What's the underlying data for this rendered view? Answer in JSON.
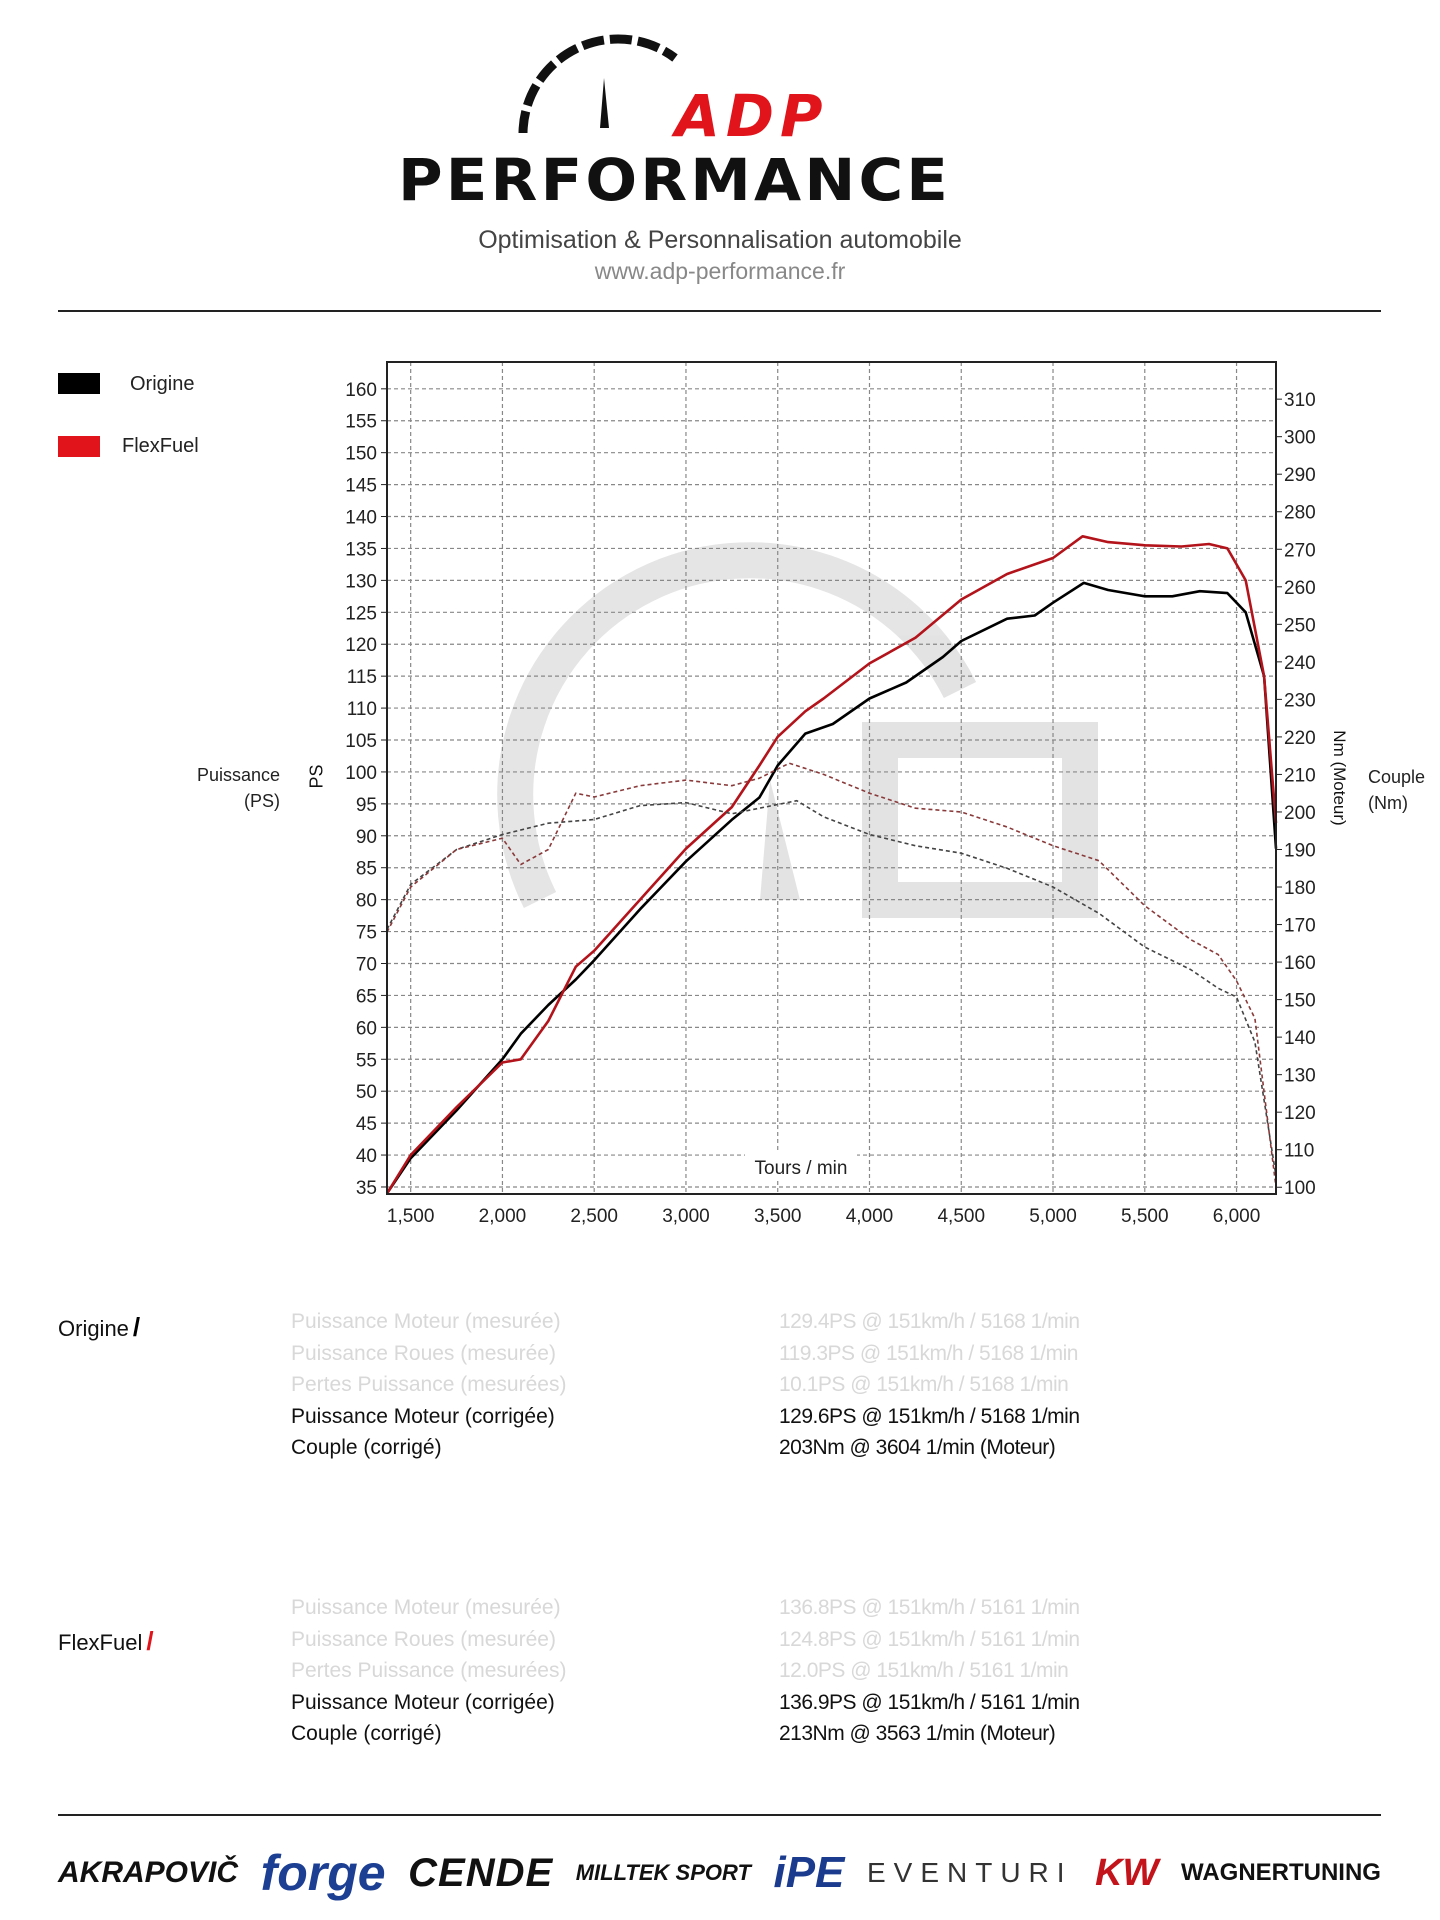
{
  "header": {
    "brand_top": "ADP",
    "brand_bottom": "PERFORMANCE",
    "subtitle": "Optimisation & Personnalisation automobile",
    "url": "www.adp-performance.fr",
    "brand_color": "#e1141b"
  },
  "legend": [
    {
      "label": "Origine",
      "color": "#000000"
    },
    {
      "label": "FlexFuel",
      "color": "#e1141b"
    }
  ],
  "axis_titles": {
    "left_outer": [
      "Puissance",
      "(PS)"
    ],
    "left_inner": "PS",
    "right_outer": [
      "Couple",
      "(Nm)"
    ],
    "right_inner": "Nm (Moteur)",
    "x": "Tours / min"
  },
  "chart_data": {
    "type": "line",
    "title": "",
    "xlabel": "Tours / min",
    "ylabel": "PS",
    "y2label": "Nm (Moteur)",
    "xlim": [
      1371,
      6215
    ],
    "ylim": [
      33.9,
      164.2
    ],
    "y2lim": [
      98.2,
      319.9
    ],
    "grid": true,
    "x_ticks": [
      "1,500",
      "2,000",
      "2,500",
      "3,000",
      "3,500",
      "4,000",
      "4,500",
      "5,000",
      "5,500",
      "6,000"
    ],
    "x_tick_values": [
      1500,
      2000,
      2500,
      3000,
      3500,
      4000,
      4500,
      5000,
      5500,
      6000
    ],
    "y_ticks": [
      35,
      40,
      45,
      50,
      55,
      60,
      65,
      70,
      75,
      80,
      85,
      90,
      95,
      100,
      105,
      110,
      115,
      120,
      125,
      130,
      135,
      140,
      145,
      150,
      155,
      160
    ],
    "y2_ticks": [
      100,
      110,
      120,
      130,
      140,
      150,
      160,
      170,
      180,
      190,
      200,
      210,
      220,
      230,
      240,
      250,
      260,
      270,
      280,
      290,
      300,
      310
    ],
    "series": [
      {
        "name": "Origine",
        "kind": "power",
        "axis": "left",
        "color": "#000000",
        "x": [
          1371,
          1500,
          1750,
          2000,
          2100,
          2250,
          2400,
          2500,
          2750,
          3000,
          3250,
          3400,
          3500,
          3650,
          3800,
          4000,
          4200,
          4400,
          4500,
          4750,
          4900,
          5000,
          5168,
          5300,
          5500,
          5650,
          5800,
          5950,
          6050,
          6150,
          6215
        ],
        "y": [
          34,
          39.5,
          47,
          55,
          59,
          63.5,
          67.5,
          70.5,
          78.5,
          86,
          92.5,
          96,
          101,
          106,
          107.5,
          111.5,
          114,
          118,
          120.5,
          124,
          124.5,
          126.5,
          129.6,
          128.5,
          127.5,
          127.5,
          128.3,
          128,
          125,
          115,
          88
        ]
      },
      {
        "name": "FlexFuel",
        "kind": "power",
        "axis": "left",
        "color": "#b3131a",
        "x": [
          1371,
          1500,
          1750,
          2000,
          2100,
          2250,
          2400,
          2500,
          2750,
          3000,
          3250,
          3400,
          3500,
          3650,
          3750,
          4000,
          4250,
          4500,
          4750,
          5000,
          5161,
          5300,
          5500,
          5700,
          5850,
          5950,
          6050,
          6150,
          6215
        ],
        "y": [
          34,
          40,
          47.5,
          54.5,
          55,
          61,
          69.5,
          72,
          80,
          88,
          94.5,
          101,
          105.5,
          109.5,
          111.5,
          117,
          121,
          127,
          131,
          133.5,
          136.9,
          136,
          135.5,
          135.3,
          135.7,
          135,
          130,
          115,
          92
        ]
      },
      {
        "name": "Origine",
        "kind": "torque",
        "axis": "right",
        "color": "#444444",
        "x": [
          1371,
          1500,
          1750,
          2000,
          2250,
          2500,
          2750,
          3000,
          3250,
          3400,
          3604,
          3750,
          4000,
          4250,
          4500,
          4750,
          5000,
          5250,
          5500,
          5750,
          5900,
          6000,
          6100,
          6215
        ],
        "y": [
          168.7,
          180.7,
          190,
          194,
          197,
          198,
          201.7,
          202.5,
          199.5,
          201,
          203,
          198.7,
          194,
          191,
          189,
          185,
          180,
          173,
          164,
          158,
          153,
          150.7,
          138.7,
          103
        ]
      },
      {
        "name": "FlexFuel",
        "kind": "torque",
        "axis": "right",
        "color": "#8a3a3a",
        "x": [
          1371,
          1500,
          1750,
          2000,
          2100,
          2250,
          2400,
          2500,
          2750,
          3000,
          3250,
          3400,
          3563,
          3750,
          4000,
          4250,
          4500,
          4750,
          5000,
          5250,
          5500,
          5750,
          5900,
          6000,
          6100,
          6215
        ],
        "y": [
          168,
          180,
          190,
          193,
          186,
          190,
          205,
          204,
          207,
          208.5,
          207,
          209,
          213,
          210,
          205,
          201,
          200,
          196,
          191,
          187,
          175,
          166,
          162,
          155,
          145,
          100
        ]
      }
    ]
  },
  "results": [
    {
      "label": "Origine",
      "slash_color": "#000000",
      "rows": [
        {
          "label": "Puissance Moteur (mesurée)",
          "value": "129.4PS @ 151km/h / 5168 1/min",
          "faded": true
        },
        {
          "label": "Puissance Roues (mesurée)",
          "value": "119.3PS @ 151km/h / 5168 1/min",
          "faded": true
        },
        {
          "label": "Pertes Puissance (mesurées)",
          "value": "10.1PS @ 151km/h / 5168 1/min",
          "faded": true
        },
        {
          "label": "Puissance Moteur (corrigée)",
          "value": "129.6PS @ 151km/h / 5168 1/min",
          "faded": false
        },
        {
          "label": "Couple (corrigé)",
          "value": "203Nm @ 3604 1/min (Moteur)",
          "faded": false
        }
      ]
    },
    {
      "label": "FlexFuel",
      "slash_color": "#e1141b",
      "rows": [
        {
          "label": "Puissance Moteur (mesurée)",
          "value": "136.8PS @ 151km/h / 5161 1/min",
          "faded": true
        },
        {
          "label": "Puissance Roues (mesurée)",
          "value": "124.8PS @ 151km/h / 5161 1/min",
          "faded": true
        },
        {
          "label": "Pertes Puissance (mesurées)",
          "value": "12.0PS @ 151km/h / 5161 1/min",
          "faded": true
        },
        {
          "label": "Puissance Moteur (corrigée)",
          "value": "136.9PS @ 151km/h / 5161 1/min",
          "faded": false
        },
        {
          "label": "Couple (corrigé)",
          "value": "213Nm @ 3563 1/min (Moteur)",
          "faded": false
        }
      ]
    }
  ],
  "sponsors": [
    "AKRAPOVIČ",
    "forge",
    "CENDE",
    "MILLTEK SPORT",
    "iPE",
    "EVENTURI",
    "KW",
    "WAGNERTUNING"
  ]
}
